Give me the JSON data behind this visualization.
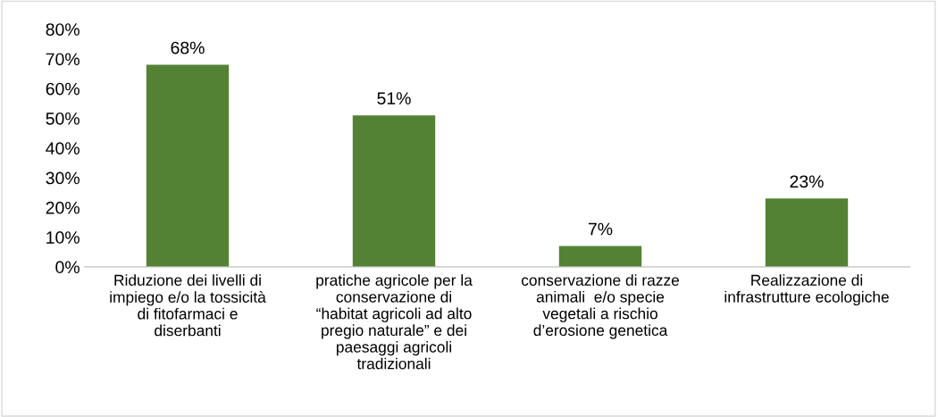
{
  "chart_data": {
    "type": "bar",
    "categories": [
      "Riduzione dei livelli di\nimpiego e/o la tossicità\ndi fitofarmaci e\ndiserbanti",
      "pratiche agricole per la\nconservazione di\n“habitat agricoli ad alto\npregio naturale” e dei\npaesaggi agricoli\ntradizionali",
      "conservazione di razze\nanimali  e/o specie\nvegetali a rischio\nd’erosione genetica",
      "Realizzazione di\ninfrastrutture ecologiche"
    ],
    "values": [
      68,
      51,
      7,
      23
    ],
    "value_labels": [
      "68%",
      "51%",
      "7%",
      "23%"
    ],
    "color": "#548235",
    "ylim": [
      0,
      80
    ],
    "yticks": [
      {
        "value": 0,
        "label": "0%"
      },
      {
        "value": 10,
        "label": "10%"
      },
      {
        "value": 20,
        "label": "20%"
      },
      {
        "value": 30,
        "label": "30%"
      },
      {
        "value": 40,
        "label": "40%"
      },
      {
        "value": 50,
        "label": "50%"
      },
      {
        "value": 60,
        "label": "60%"
      },
      {
        "value": 70,
        "label": "70%"
      },
      {
        "value": 80,
        "label": "80%"
      }
    ],
    "grid": false,
    "legend": false
  }
}
